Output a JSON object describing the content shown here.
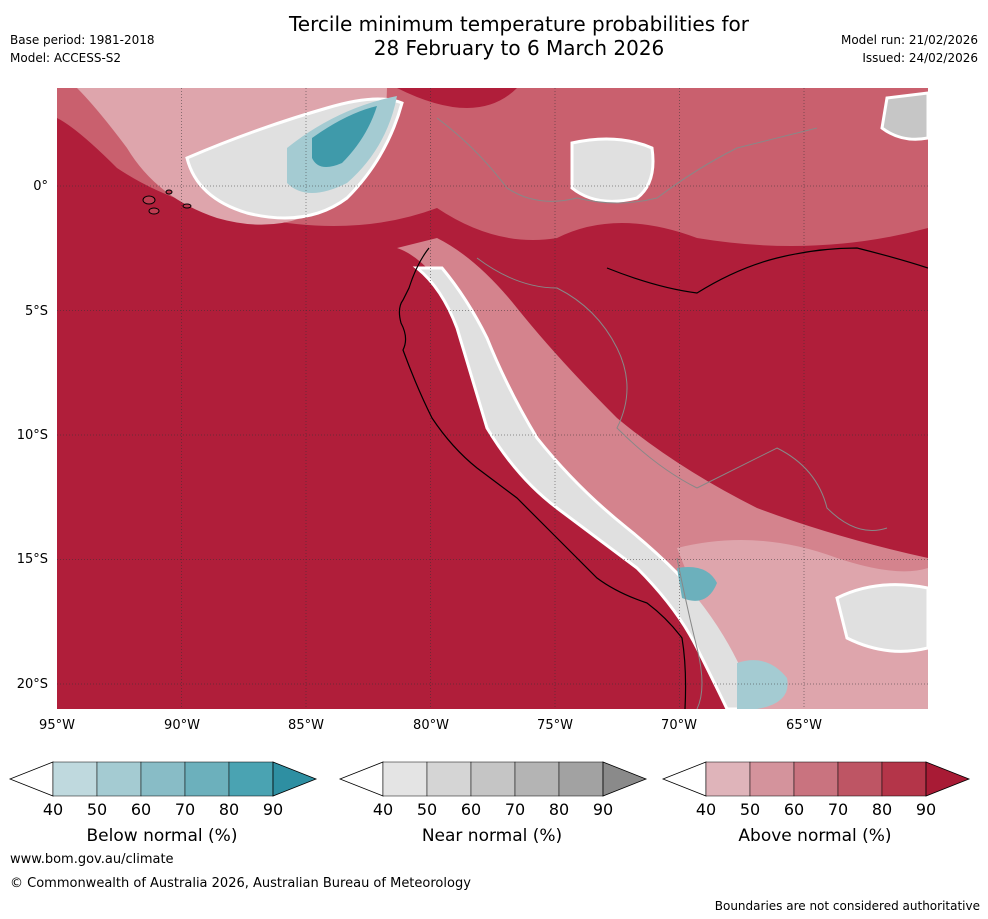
{
  "header": {
    "title_line1": "Tercile minimum temperature probabilities for",
    "title_line2": "28 February to 6 March 2026",
    "base_period": "Base period: 1981-2018",
    "model": "Model: ACCESS-S2",
    "model_run": "Model run: 21/02/2026",
    "issued": "Issued: 24/02/2026"
  },
  "map": {
    "lat_labels": [
      "0°",
      "5°S",
      "10°S",
      "15°S",
      "20°S"
    ],
    "lon_labels": [
      "95°W",
      "90°W",
      "85°W",
      "80°W",
      "75°W",
      "70°W",
      "65°W"
    ],
    "colors": {
      "above_90": "#b01e3a",
      "above_80": "#bd3d52",
      "above_70": "#c9606e",
      "above_60": "#d4838d",
      "above_50": "#dea5ac",
      "below_50": "#a4cbd2",
      "below_70": "#6cb0bc",
      "below_80": "#3f9aaa",
      "near_40": "#e0e0e0",
      "near_60": "#c6c6c6",
      "near_80": "#a3a3a3",
      "coast": "#000000",
      "border": "#888888"
    }
  },
  "colorbars": [
    {
      "label": "Below normal (%)",
      "ticks": [
        "40",
        "50",
        "60",
        "70",
        "80",
        "90"
      ],
      "colors": [
        "#bfd9de",
        "#a4cbd2",
        "#88bcc6",
        "#6cb0bc",
        "#4aa3b2",
        "#2e8fa2"
      ]
    },
    {
      "label": "Near normal (%)",
      "ticks": [
        "40",
        "50",
        "60",
        "70",
        "80",
        "90"
      ],
      "colors": [
        "#e4e4e4",
        "#d5d5d5",
        "#c5c5c5",
        "#b4b4b4",
        "#a2a2a2",
        "#8a8a8a"
      ]
    },
    {
      "label": "Above normal (%)",
      "ticks": [
        "40",
        "50",
        "60",
        "70",
        "80",
        "90"
      ],
      "colors": [
        "#dfb4ba",
        "#d4939c",
        "#c9737f",
        "#be5564",
        "#b43549",
        "#a81b35"
      ]
    }
  ],
  "footer": {
    "website": "www.bom.gov.au/climate",
    "copyright": "© Commonwealth of Australia 2026, Australian Bureau of Meteorology",
    "disclaimer": "Boundaries are not considered authoritative"
  }
}
